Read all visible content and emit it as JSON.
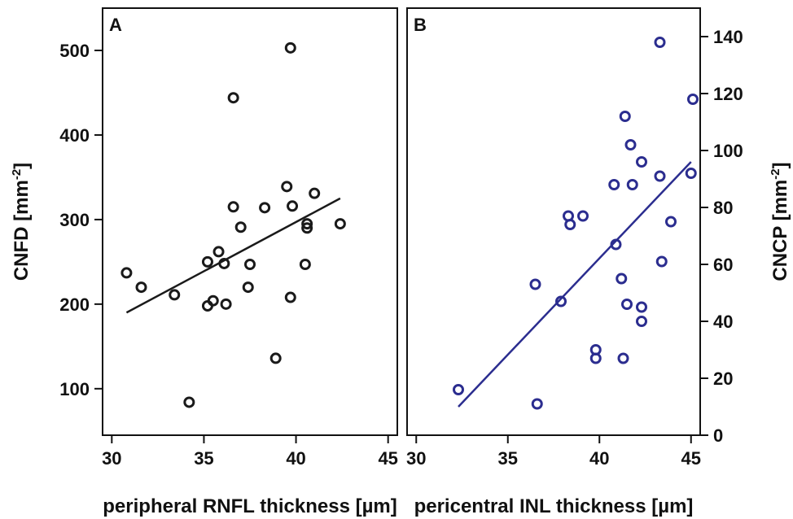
{
  "chart_data": [
    {
      "type": "scatter",
      "panel_label": "A",
      "xlabel": "peripheral RNFL thickness [µm]",
      "ylabel": "CNFD [mm",
      "ylabel_sup": "-2",
      "ylabel_end": "]",
      "xlim": [
        29.5,
        45.5
      ],
      "ylim": [
        45,
        550
      ],
      "xticks": [
        30,
        35,
        40,
        45
      ],
      "yticks": [
        100,
        200,
        300,
        400,
        500
      ],
      "y_axis_side": "left",
      "color": "#1a1a1a",
      "points": [
        {
          "x": 30.8,
          "y": 237
        },
        {
          "x": 31.6,
          "y": 220
        },
        {
          "x": 33.4,
          "y": 211
        },
        {
          "x": 34.2,
          "y": 84
        },
        {
          "x": 35.2,
          "y": 250
        },
        {
          "x": 35.2,
          "y": 198
        },
        {
          "x": 35.5,
          "y": 204
        },
        {
          "x": 35.8,
          "y": 262
        },
        {
          "x": 36.1,
          "y": 248
        },
        {
          "x": 36.2,
          "y": 200
        },
        {
          "x": 36.6,
          "y": 444
        },
        {
          "x": 36.6,
          "y": 315
        },
        {
          "x": 37.0,
          "y": 291
        },
        {
          "x": 37.4,
          "y": 220
        },
        {
          "x": 37.5,
          "y": 247
        },
        {
          "x": 38.3,
          "y": 314
        },
        {
          "x": 38.9,
          "y": 136
        },
        {
          "x": 39.5,
          "y": 339
        },
        {
          "x": 39.7,
          "y": 503
        },
        {
          "x": 39.7,
          "y": 208
        },
        {
          "x": 39.8,
          "y": 316
        },
        {
          "x": 40.5,
          "y": 247
        },
        {
          "x": 40.6,
          "y": 295
        },
        {
          "x": 40.6,
          "y": 290
        },
        {
          "x": 41.0,
          "y": 331
        },
        {
          "x": 42.4,
          "y": 295
        }
      ],
      "fit_line": {
        "x": [
          30.8,
          42.4
        ],
        "y": [
          190,
          325
        ]
      }
    },
    {
      "type": "scatter",
      "panel_label": "B",
      "xlabel": "pericentral INL thickness [µm]",
      "ylabel": "CNCP [mm",
      "ylabel_sup": "-2",
      "ylabel_end": "]",
      "xlim": [
        29.5,
        45.5
      ],
      "ylim": [
        0,
        150
      ],
      "xticks": [
        30,
        35,
        40,
        45
      ],
      "yticks": [
        0,
        20,
        40,
        60,
        80,
        100,
        120,
        140
      ],
      "y_axis_side": "right",
      "color": "#2b2d8f",
      "points": [
        {
          "x": 32.3,
          "y": 16
        },
        {
          "x": 36.5,
          "y": 53
        },
        {
          "x": 36.6,
          "y": 11
        },
        {
          "x": 37.9,
          "y": 47
        },
        {
          "x": 38.3,
          "y": 77
        },
        {
          "x": 38.4,
          "y": 74
        },
        {
          "x": 39.1,
          "y": 77
        },
        {
          "x": 39.8,
          "y": 30
        },
        {
          "x": 39.8,
          "y": 27
        },
        {
          "x": 40.8,
          "y": 88
        },
        {
          "x": 40.9,
          "y": 67
        },
        {
          "x": 41.2,
          "y": 55
        },
        {
          "x": 41.3,
          "y": 27
        },
        {
          "x": 41.4,
          "y": 112
        },
        {
          "x": 41.5,
          "y": 46
        },
        {
          "x": 41.7,
          "y": 102
        },
        {
          "x": 41.8,
          "y": 88
        },
        {
          "x": 42.3,
          "y": 96
        },
        {
          "x": 42.3,
          "y": 45
        },
        {
          "x": 42.3,
          "y": 40
        },
        {
          "x": 43.3,
          "y": 91
        },
        {
          "x": 43.3,
          "y": 138
        },
        {
          "x": 43.4,
          "y": 61
        },
        {
          "x": 43.9,
          "y": 75
        },
        {
          "x": 45.0,
          "y": 92
        },
        {
          "x": 45.1,
          "y": 118
        }
      ],
      "fit_line": {
        "x": [
          32.3,
          45.0
        ],
        "y": [
          10,
          96
        ]
      }
    }
  ]
}
